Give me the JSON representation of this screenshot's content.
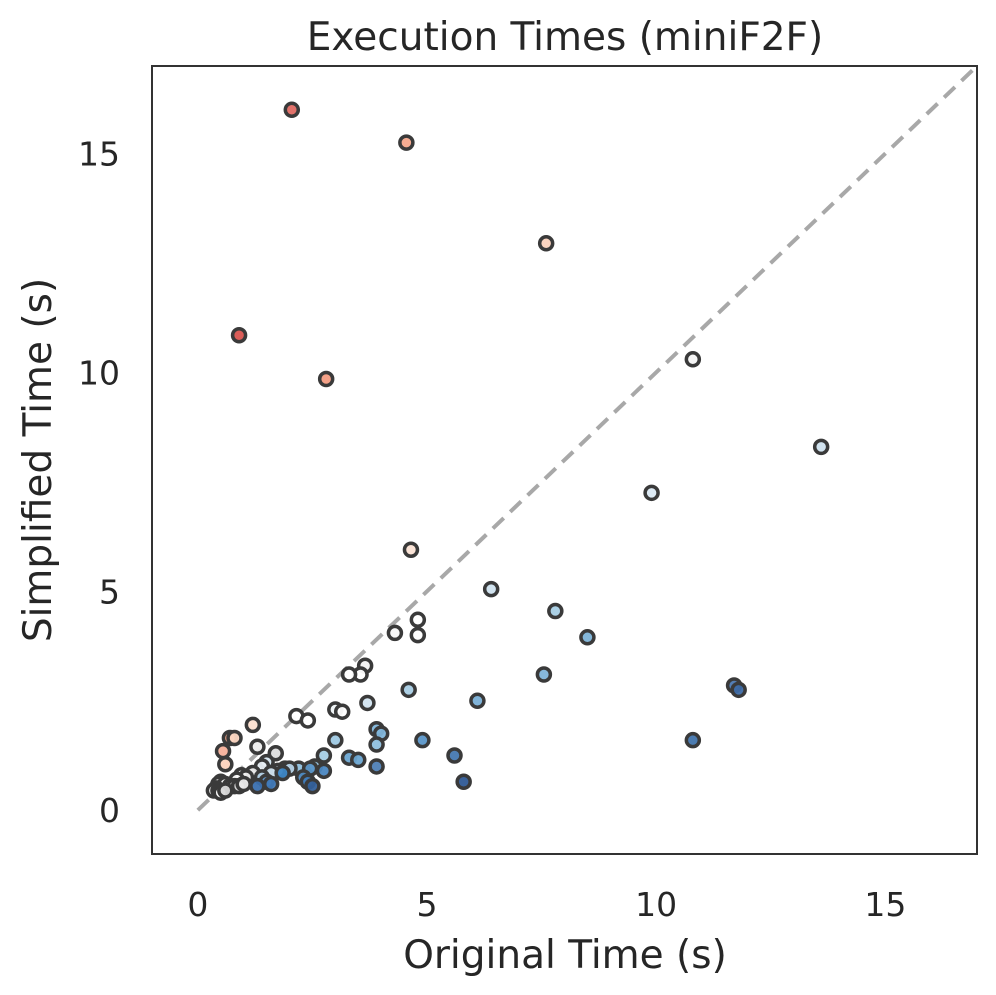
{
  "chart_data": {
    "type": "scatter",
    "title": "Execution Times (miniF2F)",
    "xlabel": "Original Time (s)",
    "ylabel": "Simplified Time (s)",
    "xlim": [
      -1,
      17
    ],
    "ylim": [
      -1,
      17
    ],
    "xticks": [
      0,
      5,
      10,
      15
    ],
    "yticks": [
      0,
      5,
      10,
      15
    ],
    "xtick_labels": [
      "0",
      "5",
      "10",
      "15"
    ],
    "ytick_labels": [
      "0",
      "5",
      "10",
      "15"
    ],
    "grid": false,
    "reference_line": {
      "style": "dashed",
      "color": "#a8a8a8",
      "from": [
        0,
        0
      ],
      "to": [
        17,
        17
      ]
    },
    "color_scale": "red-to-blue diverging by ratio of simplified to original time",
    "points": [
      {
        "x": 2.05,
        "y": 16.0,
        "color": "#e06a63"
      },
      {
        "x": 4.55,
        "y": 15.25,
        "color": "#f6a88c"
      },
      {
        "x": 7.6,
        "y": 12.95,
        "color": "#fbd2bd"
      },
      {
        "x": 0.9,
        "y": 10.85,
        "color": "#d9544f"
      },
      {
        "x": 2.8,
        "y": 9.85,
        "color": "#f39c82"
      },
      {
        "x": 10.8,
        "y": 10.3,
        "color": "#f4f4f4"
      },
      {
        "x": 13.6,
        "y": 8.3,
        "color": "#cfe2ee"
      },
      {
        "x": 9.9,
        "y": 7.25,
        "color": "#dbe9f3"
      },
      {
        "x": 4.65,
        "y": 5.95,
        "color": "#fbe3d5"
      },
      {
        "x": 6.4,
        "y": 5.05,
        "color": "#cfe2ee"
      },
      {
        "x": 7.8,
        "y": 4.55,
        "color": "#a6cde4"
      },
      {
        "x": 4.8,
        "y": 4.35,
        "color": "#ffffff"
      },
      {
        "x": 4.8,
        "y": 4.0,
        "color": "#ffffff"
      },
      {
        "x": 4.3,
        "y": 4.05,
        "color": "#f7f7f7"
      },
      {
        "x": 8.5,
        "y": 3.95,
        "color": "#7db3d8"
      },
      {
        "x": 3.65,
        "y": 3.3,
        "color": "#f2f2f2"
      },
      {
        "x": 3.55,
        "y": 3.1,
        "color": "#ffffff"
      },
      {
        "x": 3.3,
        "y": 3.1,
        "color": "#ffffff"
      },
      {
        "x": 7.55,
        "y": 3.1,
        "color": "#7fb4d9"
      },
      {
        "x": 11.7,
        "y": 2.85,
        "color": "#4a77b0"
      },
      {
        "x": 11.8,
        "y": 2.75,
        "color": "#3d6aa5"
      },
      {
        "x": 4.6,
        "y": 2.75,
        "color": "#a9cde4"
      },
      {
        "x": 6.1,
        "y": 2.5,
        "color": "#79afd6"
      },
      {
        "x": 3.7,
        "y": 2.45,
        "color": "#d2e4f0"
      },
      {
        "x": 3.0,
        "y": 2.3,
        "color": "#eef3f6"
      },
      {
        "x": 3.15,
        "y": 2.25,
        "color": "#ffffff"
      },
      {
        "x": 2.15,
        "y": 2.15,
        "color": "#ffffff"
      },
      {
        "x": 2.4,
        "y": 2.05,
        "color": "#ffffff"
      },
      {
        "x": 1.2,
        "y": 1.95,
        "color": "#fde0d0"
      },
      {
        "x": 3.9,
        "y": 1.85,
        "color": "#7fb4d9"
      },
      {
        "x": 4.0,
        "y": 1.75,
        "color": "#7fb4d9"
      },
      {
        "x": 0.7,
        "y": 1.65,
        "color": "#f4a484"
      },
      {
        "x": 0.8,
        "y": 1.65,
        "color": "#fbd6c2"
      },
      {
        "x": 3.0,
        "y": 1.6,
        "color": "#9ec8e2"
      },
      {
        "x": 4.9,
        "y": 1.6,
        "color": "#5b96c8"
      },
      {
        "x": 10.8,
        "y": 1.6,
        "color": "#4275ad"
      },
      {
        "x": 3.9,
        "y": 1.5,
        "color": "#8fbfdd"
      },
      {
        "x": 1.3,
        "y": 1.45,
        "color": "#ececec"
      },
      {
        "x": 0.55,
        "y": 1.35,
        "color": "#f5b09a"
      },
      {
        "x": 1.7,
        "y": 1.3,
        "color": "#dcdcdc"
      },
      {
        "x": 2.75,
        "y": 1.25,
        "color": "#a5cce3"
      },
      {
        "x": 5.6,
        "y": 1.25,
        "color": "#4678b0"
      },
      {
        "x": 3.3,
        "y": 1.2,
        "color": "#6aa5d1"
      },
      {
        "x": 3.5,
        "y": 1.15,
        "color": "#6aa5d1"
      },
      {
        "x": 1.5,
        "y": 1.1,
        "color": "#d6e6f0"
      },
      {
        "x": 0.6,
        "y": 1.05,
        "color": "#fbd2bd"
      },
      {
        "x": 1.4,
        "y": 1.0,
        "color": "#e8eef3"
      },
      {
        "x": 2.55,
        "y": 1.0,
        "color": "#8fbfdd"
      },
      {
        "x": 3.9,
        "y": 1.0,
        "color": "#4f7fb5"
      },
      {
        "x": 2.2,
        "y": 0.95,
        "color": "#8fbfdd"
      },
      {
        "x": 2.45,
        "y": 0.95,
        "color": "#5b96c8"
      },
      {
        "x": 2.75,
        "y": 0.9,
        "color": "#4a86c0"
      },
      {
        "x": 1.9,
        "y": 0.95,
        "color": "#b6d3e8"
      },
      {
        "x": 2.0,
        "y": 0.95,
        "color": "#b6d3e8"
      },
      {
        "x": 1.75,
        "y": 0.9,
        "color": "#c6dcec"
      },
      {
        "x": 1.6,
        "y": 0.85,
        "color": "#d1e3ef"
      },
      {
        "x": 1.85,
        "y": 0.85,
        "color": "#3c86c5"
      },
      {
        "x": 1.2,
        "y": 0.85,
        "color": "#e6e6e6"
      },
      {
        "x": 0.95,
        "y": 0.8,
        "color": "#f7f7f7"
      },
      {
        "x": 1.05,
        "y": 0.75,
        "color": "#f0f0f0"
      },
      {
        "x": 0.85,
        "y": 0.7,
        "color": "#ffffff"
      },
      {
        "x": 1.4,
        "y": 0.75,
        "color": "#b5d3e8"
      },
      {
        "x": 2.3,
        "y": 0.75,
        "color": "#4f8bc3"
      },
      {
        "x": 2.4,
        "y": 0.65,
        "color": "#3f7bbb"
      },
      {
        "x": 2.5,
        "y": 0.55,
        "color": "#335f99"
      },
      {
        "x": 5.8,
        "y": 0.65,
        "color": "#2f5a96"
      },
      {
        "x": 1.5,
        "y": 0.65,
        "color": "#5a8ec2"
      },
      {
        "x": 1.6,
        "y": 0.6,
        "color": "#3f78b7"
      },
      {
        "x": 1.3,
        "y": 0.55,
        "color": "#3a6fae"
      },
      {
        "x": 0.5,
        "y": 0.65,
        "color": "#dddddd"
      },
      {
        "x": 0.45,
        "y": 0.6,
        "color": "#ffffff"
      },
      {
        "x": 0.6,
        "y": 0.6,
        "color": "#ffffff"
      },
      {
        "x": 0.7,
        "y": 0.55,
        "color": "#f0f0f0"
      },
      {
        "x": 0.8,
        "y": 0.55,
        "color": "#e0e0e0"
      },
      {
        "x": 0.9,
        "y": 0.55,
        "color": "#d0d0d0"
      },
      {
        "x": 1.0,
        "y": 0.6,
        "color": "#ececec"
      },
      {
        "x": 0.4,
        "y": 0.5,
        "color": "#f4f4f4"
      },
      {
        "x": 0.35,
        "y": 0.45,
        "color": "#ffffff"
      },
      {
        "x": 0.45,
        "y": 0.45,
        "color": "#e8e8e8"
      },
      {
        "x": 0.5,
        "y": 0.4,
        "color": "#ffffff"
      },
      {
        "x": 0.6,
        "y": 0.45,
        "color": "#d8d8d8"
      }
    ]
  }
}
